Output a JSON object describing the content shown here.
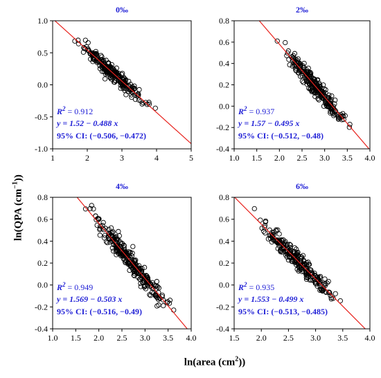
{
  "figure": {
    "ylabel_main": "ln(QPA (cm",
    "ylabel_sup": "−1",
    "ylabel_end": "))",
    "xlabel_main": "ln(area (cm",
    "xlabel_sup": "2",
    "xlabel_end": "))"
  },
  "colors": {
    "fit_line": "#e8231e",
    "annotation": "#1f1fd6",
    "points": "#000000"
  },
  "chart_data": [
    {
      "type": "scatter",
      "title": "0‰",
      "xlim": [
        1,
        5
      ],
      "ylim": [
        -1.0,
        1.0
      ],
      "xticks": [
        1,
        2,
        3,
        4,
        5
      ],
      "yticks": [
        -1.0,
        -0.5,
        0.0,
        0.5,
        1.0
      ],
      "xtick_labels": [
        "1",
        "2",
        "3",
        "4",
        "5"
      ],
      "ytick_labels": [
        "-1.0",
        "-0.5",
        "0.0",
        "0.5",
        "1.0"
      ],
      "fit": {
        "intercept": 1.52,
        "slope": -0.488
      },
      "annotation": {
        "r2_value": " = 0.912",
        "equation": "y = 1.52 − 0.488 x",
        "ci": "95% CI: (−0.506, −0.472)"
      },
      "points_summary": {
        "n": 260,
        "x_range": [
          1.5,
          4.0
        ],
        "residual_sd": 0.06
      }
    },
    {
      "type": "scatter",
      "title": "2‰",
      "xlim": [
        1.0,
        4.0
      ],
      "ylim": [
        -0.4,
        0.8
      ],
      "xticks": [
        1.0,
        1.5,
        2.0,
        2.5,
        3.0,
        3.5,
        4.0
      ],
      "yticks": [
        -0.4,
        -0.2,
        0.0,
        0.2,
        0.4,
        0.6,
        0.8
      ],
      "xtick_labels": [
        "1.0",
        "1.5",
        "2.0",
        "2.5",
        "3.0",
        "3.5",
        "4.0"
      ],
      "ytick_labels": [
        "-0.4",
        "-0.2",
        "0.0",
        "0.2",
        "0.4",
        "0.6",
        "0.8"
      ],
      "fit": {
        "intercept": 1.57,
        "slope": -0.495
      },
      "annotation": {
        "r2_value": " = 0.937",
        "equation": "y = 1.57 − 0.495 x",
        "ci": "95% CI: (−0.512, −0.48)"
      },
      "points_summary": {
        "n": 260,
        "x_range": [
          1.9,
          3.7
        ],
        "residual_sd": 0.045
      }
    },
    {
      "type": "scatter",
      "title": "4‰",
      "xlim": [
        1.0,
        4.0
      ],
      "ylim": [
        -0.4,
        0.8
      ],
      "xticks": [
        1.0,
        1.5,
        2.0,
        2.5,
        3.0,
        3.5,
        4.0
      ],
      "yticks": [
        -0.4,
        -0.2,
        0.0,
        0.2,
        0.4,
        0.6,
        0.8
      ],
      "xtick_labels": [
        "1.0",
        "1.5",
        "2.0",
        "2.5",
        "3.0",
        "3.5",
        "4.0"
      ],
      "ytick_labels": [
        "-0.4",
        "-0.2",
        "0.0",
        "0.2",
        "0.4",
        "0.6",
        "0.8"
      ],
      "fit": {
        "intercept": 1.569,
        "slope": -0.503
      },
      "annotation": {
        "r2_value": " = 0.949",
        "equation": "y = 1.569 − 0.503 x",
        "ci": "95% CI: (−0.516, −0.49)"
      },
      "points_summary": {
        "n": 300,
        "x_range": [
          1.6,
          3.75
        ],
        "residual_sd": 0.045
      }
    },
    {
      "type": "scatter",
      "title": "6‰",
      "xlim": [
        1.5,
        4.0
      ],
      "ylim": [
        -0.4,
        0.8
      ],
      "xticks": [
        1.5,
        2.0,
        2.5,
        3.0,
        3.5,
        4.0
      ],
      "yticks": [
        -0.4,
        -0.2,
        0.0,
        0.2,
        0.4,
        0.6,
        0.8
      ],
      "xtick_labels": [
        "1.5",
        "2.0",
        "2.5",
        "3.0",
        "3.5",
        "4.0"
      ],
      "ytick_labels": [
        "-0.4",
        "-0.2",
        "0.0",
        "0.2",
        "0.4",
        "0.6",
        "0.8"
      ],
      "fit": {
        "intercept": 1.553,
        "slope": -0.499
      },
      "annotation": {
        "r2_value": " = 0.935",
        "equation": "y = 1.553 − 0.499 x",
        "ci": "95% CI: (−0.513, −0.485)"
      },
      "points_summary": {
        "n": 260,
        "x_range": [
          1.7,
          3.6
        ],
        "residual_sd": 0.045
      }
    }
  ]
}
